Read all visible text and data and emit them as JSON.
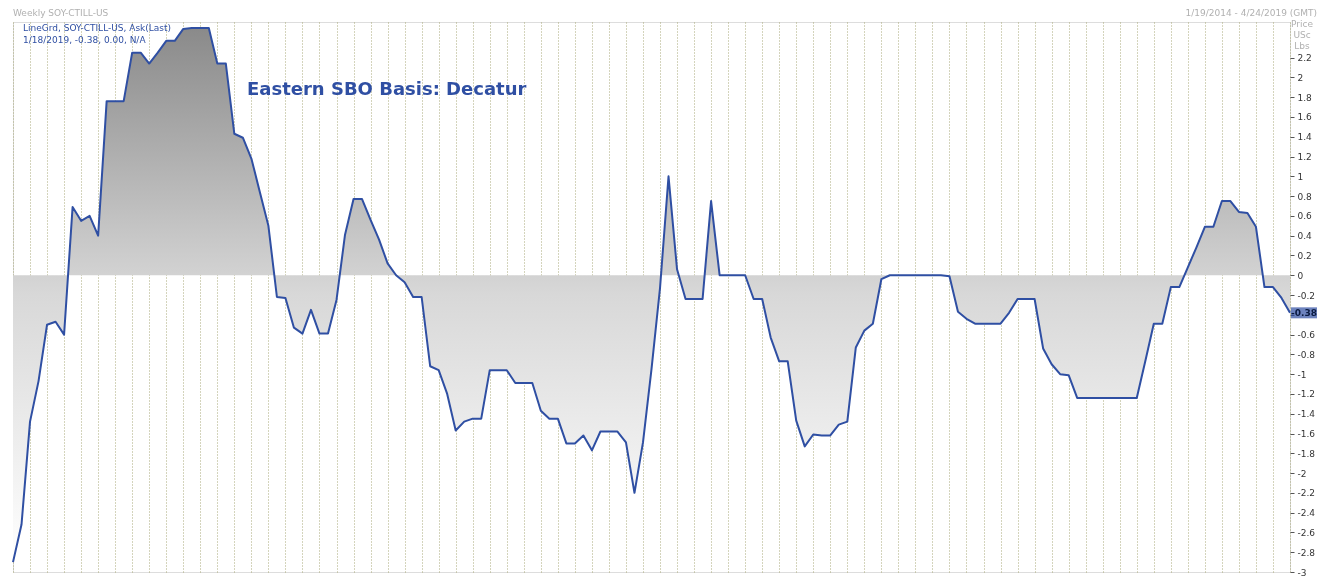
{
  "chart_data": {
    "type": "line",
    "title": "Eastern SBO Basis: Decatur",
    "ylabel": "Price USc Lbs",
    "annotations": [
      "Weekly SOY-CTILL-US",
      "1/19/2014 - 4/24/2019 (GMT)",
      "1/18/2019, -0.38, 0.00, N/A",
      {
        "text": "-0.38",
        "y": -0.38
      }
    ],
    "categories": [
      null,
      null,
      null,
      null,
      null,
      null,
      null,
      null,
      null,
      null,
      null,
      null,
      null,
      null,
      null,
      null,
      null,
      null,
      null,
      null,
      null,
      null,
      null,
      null,
      null,
      null,
      null,
      null,
      null,
      null,
      null,
      null,
      null,
      null,
      null,
      null,
      null,
      null,
      null,
      null,
      null,
      null,
      null,
      null,
      null,
      null,
      null,
      null,
      null,
      null,
      null,
      null,
      null,
      null,
      null,
      null,
      null,
      null,
      null,
      null,
      null,
      null,
      null,
      null,
      null,
      null,
      null,
      null,
      null,
      null,
      null,
      null,
      null,
      null,
      null,
      null,
      null,
      null,
      null,
      null,
      null,
      null,
      null,
      null,
      null,
      null,
      null,
      null,
      null,
      null,
      null,
      null,
      null,
      null,
      null,
      null,
      null,
      null,
      null,
      null,
      null,
      null,
      null,
      null,
      null,
      null,
      null,
      null,
      null,
      null,
      null,
      null,
      null,
      null,
      null,
      null,
      null,
      null,
      null,
      null,
      null,
      null,
      null,
      null,
      null,
      null,
      null,
      null,
      null,
      null,
      null,
      null,
      null,
      null,
      null,
      null,
      null,
      null,
      null,
      null,
      null,
      null,
      null,
      null,
      null,
      null,
      null,
      null,
      null,
      null,
      null
    ],
    "series": [
      {
        "name": "LineGrd, SOY-CTILL-US, Ask(Last)",
        "color": "#2f4fa3",
        "values": [
          -2.9,
          -2.52,
          -1.48,
          -1.07,
          -0.5,
          -0.47,
          -0.6,
          0.69,
          0.55,
          0.6,
          0.4,
          1.76,
          1.76,
          1.76,
          2.25,
          2.25,
          2.14,
          2.25,
          2.37,
          2.37,
          2.49,
          2.5,
          2.5,
          2.5,
          2.14,
          2.14,
          1.43,
          1.39,
          1.18,
          0.84,
          0.5,
          -0.22,
          -0.23,
          -0.53,
          -0.59,
          -0.35,
          -0.59,
          -0.59,
          -0.25,
          0.41,
          0.77,
          0.77,
          0.56,
          0.36,
          0.12,
          0,
          -0.07,
          -0.22,
          -0.22,
          -0.92,
          -0.96,
          -1.2,
          -1.57,
          -1.48,
          -1.45,
          -1.45,
          -0.96,
          -0.96,
          -0.96,
          -1.09,
          -1.09,
          -1.09,
          -1.37,
          -1.45,
          -1.45,
          -1.7,
          -1.7,
          -1.62,
          -1.77,
          -1.58,
          -1.58,
          -1.58,
          -1.69,
          -2.2,
          -1.69,
          -0.95,
          -0.13,
          1.0,
          0.06,
          -0.24,
          -0.24,
          -0.24,
          0.75,
          0,
          0,
          0,
          0,
          -0.24,
          -0.24,
          -0.63,
          -0.87,
          -0.87,
          -1.47,
          -1.73,
          -1.61,
          -1.62,
          -1.62,
          -1.51,
          -1.48,
          -0.73,
          -0.56,
          -0.49,
          -0.04,
          0,
          0,
          0,
          0,
          0,
          0,
          0,
          -0.01,
          -0.37,
          -0.44,
          -0.49,
          -0.49,
          -0.49,
          -0.49,
          -0.38,
          -0.24,
          -0.24,
          -0.24,
          -0.74,
          -0.9,
          -1.0,
          -1.01,
          -1.24,
          -1.24,
          -1.24,
          -1.24,
          -1.24,
          -1.24,
          -1.24,
          -1.24,
          -0.87,
          -0.49,
          -0.49,
          -0.12,
          -0.12,
          0.08,
          0.28,
          0.49,
          0.49,
          0.75,
          0.75,
          0.64,
          0.63,
          0.49,
          -0.12,
          -0.12,
          -0.23,
          -0.38
        ]
      }
    ],
    "ylim": [
      -3,
      2.56
    ],
    "yticks": [
      -3,
      -2.8,
      -2.6,
      -2.4,
      -2.2,
      -2,
      -1.8,
      -1.6,
      -1.4,
      -1.2,
      -1,
      -0.8,
      -0.6,
      {
        "value": -0.4,
        "label": null
      },
      -0.2,
      0,
      0.2,
      0.4,
      0.6,
      0.8,
      1,
      1.2,
      1.4,
      1.6,
      1.8,
      2,
      2.2
    ],
    "grid": "x",
    "tick_labels": "y"
  }
}
